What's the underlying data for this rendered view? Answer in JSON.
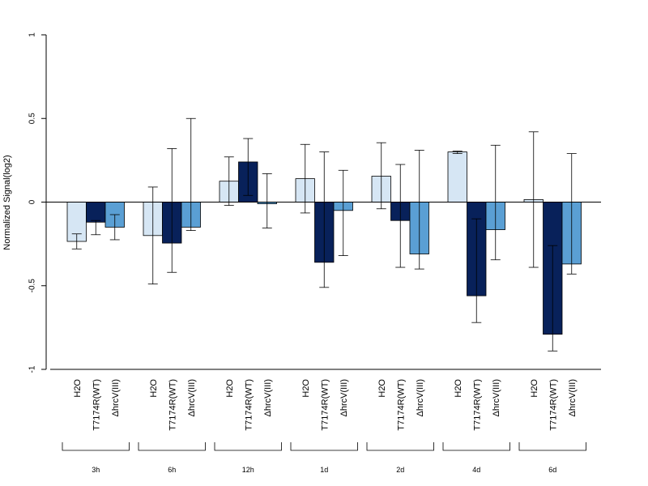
{
  "chart_data": {
    "type": "bar",
    "title": "",
    "xlabel": "",
    "ylabel": "Normalized Signal(log2)",
    "ylim": [
      -1,
      1
    ],
    "yticks": [
      1,
      0.5,
      0,
      -0.5,
      -1
    ],
    "ytick_labels": [
      "1",
      "0.5",
      "0",
      "-0.5",
      "-1"
    ],
    "grid": false,
    "legend": "none",
    "conditions": [
      "H2O",
      "T7174R(WT)",
      "ΔhrcV(III)"
    ],
    "condition_colors": [
      "#d6e6f4",
      "#08215a",
      "#5a9fd4"
    ],
    "groups": [
      {
        "label": "3h",
        "values": [
          -0.235,
          -0.12,
          -0.15
        ],
        "err_low": [
          -0.28,
          -0.195,
          -0.225
        ],
        "err_high": [
          -0.19,
          -0.11,
          -0.075
        ]
      },
      {
        "label": "6h",
        "values": [
          -0.2,
          -0.245,
          -0.15
        ],
        "err_low": [
          -0.49,
          -0.42,
          -0.17
        ],
        "err_high": [
          0.09,
          0.32,
          0.5
        ]
      },
      {
        "label": "12h",
        "values": [
          0.125,
          0.24,
          -0.01
        ],
        "err_low": [
          -0.02,
          0.04,
          -0.155
        ],
        "err_high": [
          0.27,
          0.38,
          0.17
        ]
      },
      {
        "label": "1d",
        "values": [
          0.14,
          -0.36,
          -0.05
        ],
        "err_low": [
          -0.065,
          -0.51,
          -0.32
        ],
        "err_high": [
          0.345,
          0.3,
          0.19
        ]
      },
      {
        "label": "2d",
        "values": [
          0.155,
          -0.11,
          -0.31
        ],
        "err_low": [
          -0.04,
          -0.39,
          -0.4
        ],
        "err_high": [
          0.355,
          0.225,
          0.31
        ]
      },
      {
        "label": "4d",
        "values": [
          0.3,
          -0.56,
          -0.165
        ],
        "err_low": [
          0.29,
          -0.72,
          -0.345
        ],
        "err_high": [
          0.305,
          -0.1,
          0.34
        ]
      },
      {
        "label": "6d",
        "values": [
          0.015,
          -0.79,
          -0.37
        ],
        "err_low": [
          -0.39,
          -0.89,
          -0.43
        ],
        "err_high": [
          0.42,
          -0.26,
          0.29
        ]
      }
    ]
  }
}
